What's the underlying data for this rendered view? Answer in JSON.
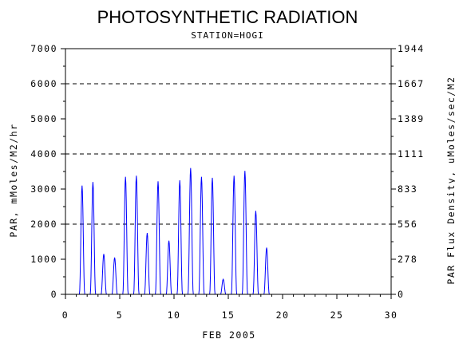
{
  "chart_data": {
    "type": "line",
    "title": "PHOTOSYNTHETIC RADIATION",
    "subtitle": "STATION=HOGI",
    "xlabel": "FEB 2005",
    "ylabel": "PAR, mMoles/M2/hr",
    "y2label": "PAR Flux Density, uMoles/sec/M2",
    "xlim": [
      0,
      30
    ],
    "ylim": [
      0,
      7000
    ],
    "x_ticks": [
      "0",
      "5",
      "10",
      "15",
      "20",
      "25",
      "30"
    ],
    "y_ticks": [
      "0",
      "1000",
      "2000",
      "3000",
      "4000",
      "5000",
      "6000",
      "7000"
    ],
    "y2_ticks": [
      "0",
      "278",
      "556",
      "833",
      "1111",
      "1389",
      "1667",
      "1944"
    ],
    "dashed_gridlines_y": [
      2000,
      4000,
      6000
    ],
    "line_color": "#0000ff",
    "series": [
      {
        "day_peaks": [
          {
            "day": 1,
            "peak": 3100
          },
          {
            "day": 2,
            "peak": 3200
          },
          {
            "day": 3,
            "peak": 1150
          },
          {
            "day": 4,
            "peak": 1050
          },
          {
            "day": 5,
            "peak": 3350
          },
          {
            "day": 6,
            "peak": 3380
          },
          {
            "day": 7,
            "peak": 1750
          },
          {
            "day": 8,
            "peak": 3220
          },
          {
            "day": 9,
            "peak": 1530
          },
          {
            "day": 10,
            "peak": 3250
          },
          {
            "day": 11,
            "peak": 3600
          },
          {
            "day": 12,
            "peak": 3350
          },
          {
            "day": 13,
            "peak": 3320
          },
          {
            "day": 14,
            "peak": 430
          },
          {
            "day": 15,
            "peak": 3380
          },
          {
            "day": 16,
            "peak": 3520
          },
          {
            "day": 17,
            "peak": 2380
          },
          {
            "day": 18,
            "peak": 1330
          }
        ]
      }
    ]
  }
}
